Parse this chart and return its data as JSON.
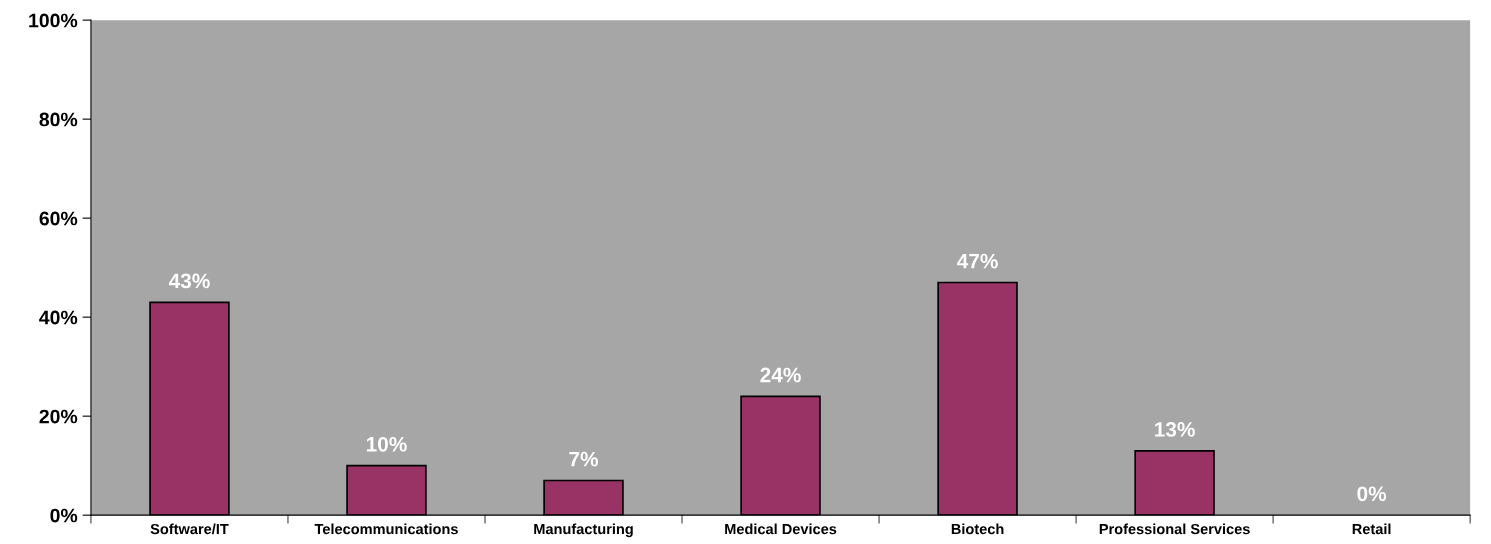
{
  "chart_data": {
    "type": "bar",
    "categories": [
      "Software/IT",
      "Telecommunications",
      "Manufacturing",
      "Medical Devices",
      "Biotech",
      "Professional Services",
      "Retail"
    ],
    "values": [
      43,
      10,
      7,
      24,
      47,
      13,
      0
    ],
    "value_labels": [
      "43%",
      "10%",
      "7%",
      "24%",
      "47%",
      "13%",
      "0%"
    ],
    "color": "#993366",
    "ylim": [
      0,
      100
    ],
    "yticks": [
      {
        "value": 0,
        "label": "0%"
      },
      {
        "value": 20,
        "label": "20%"
      },
      {
        "value": 40,
        "label": "40%"
      },
      {
        "value": 60,
        "label": "60%"
      },
      {
        "value": 80,
        "label": "80%"
      },
      {
        "value": 100,
        "label": "100%"
      }
    ],
    "grid": false
  }
}
